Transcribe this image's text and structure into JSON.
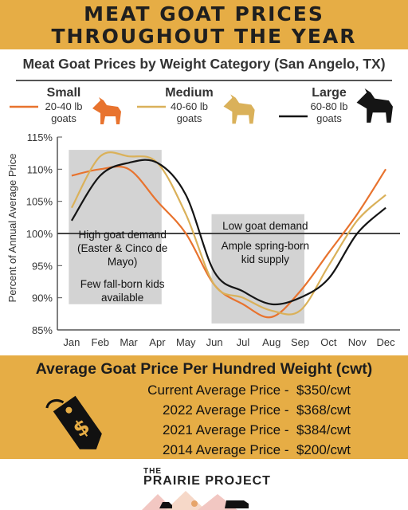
{
  "header": {
    "line1": "MEAT GOAT PRICES",
    "line2": "THROUGHOUT THE YEAR"
  },
  "legend": [
    {
      "name": "Small",
      "range": "20-40 lb",
      "unit": "goats",
      "color": "#e8732e"
    },
    {
      "name": "Medium",
      "range": "40-60 lb",
      "unit": "goats",
      "color": "#dab15a"
    },
    {
      "name": "Large",
      "range": "60-80 lb",
      "unit": "goats",
      "color": "#151515"
    }
  ],
  "annotations": {
    "high_demand": [
      "High goat demand",
      "(Easter & Cinco de",
      "Mayo)"
    ],
    "few_kids": [
      "Few fall-born kids",
      "available"
    ],
    "low_demand": [
      "Low goat demand"
    ],
    "ample_supply": [
      "Ample spring-born",
      "kid supply"
    ]
  },
  "prices": {
    "title": "Average Goat Price Per Hundred Weight (cwt)",
    "rows": [
      {
        "label": "Current Average Price -",
        "value": "$350/cwt"
      },
      {
        "label": "2022 Average Price -",
        "value": "$368/cwt"
      },
      {
        "label": "2021 Average Price -",
        "value": "$384/cwt"
      },
      {
        "label": "2014 Average Price -",
        "value": "$200/cwt"
      }
    ]
  },
  "footer": {
    "the": "THE",
    "name": "PRAIRIE PROJECT"
  },
  "colors": {
    "accent": "#e6ad45",
    "shade": "#d3d3d3"
  },
  "chart_data": {
    "type": "line",
    "title": "Meat Goat Prices by Weight Category (San Angelo, TX)",
    "ylabel": "Percent of Annual Average Price",
    "xlabel": "",
    "categories": [
      "Jan",
      "Feb",
      "Mar",
      "Apr",
      "May",
      "Jun",
      "Jul",
      "Aug",
      "Sep",
      "Oct",
      "Nov",
      "Dec"
    ],
    "ylim": [
      85,
      115
    ],
    "yticks": [
      85,
      90,
      95,
      100,
      105,
      110,
      115
    ],
    "ytick_labels": [
      "85%",
      "90%",
      "95%",
      "100%",
      "105%",
      "110%",
      "115%"
    ],
    "reference_line": 100,
    "shaded_regions": [
      {
        "from": "Jan",
        "to": "Apr"
      },
      {
        "from": "Jun",
        "to": "Sep"
      }
    ],
    "series": [
      {
        "name": "Small",
        "color": "#e8732e",
        "values": [
          109,
          110,
          110,
          105,
          100,
          92,
          89,
          87,
          91,
          97,
          103,
          110
        ]
      },
      {
        "name": "Medium",
        "color": "#dab15a",
        "values": [
          104,
          112,
          112,
          111,
          103,
          92,
          90,
          88,
          88,
          95,
          102,
          106
        ]
      },
      {
        "name": "Large",
        "color": "#151515",
        "values": [
          102,
          109,
          111,
          111,
          106,
          94,
          91,
          89,
          90,
          93,
          100,
          104
        ]
      }
    ]
  }
}
